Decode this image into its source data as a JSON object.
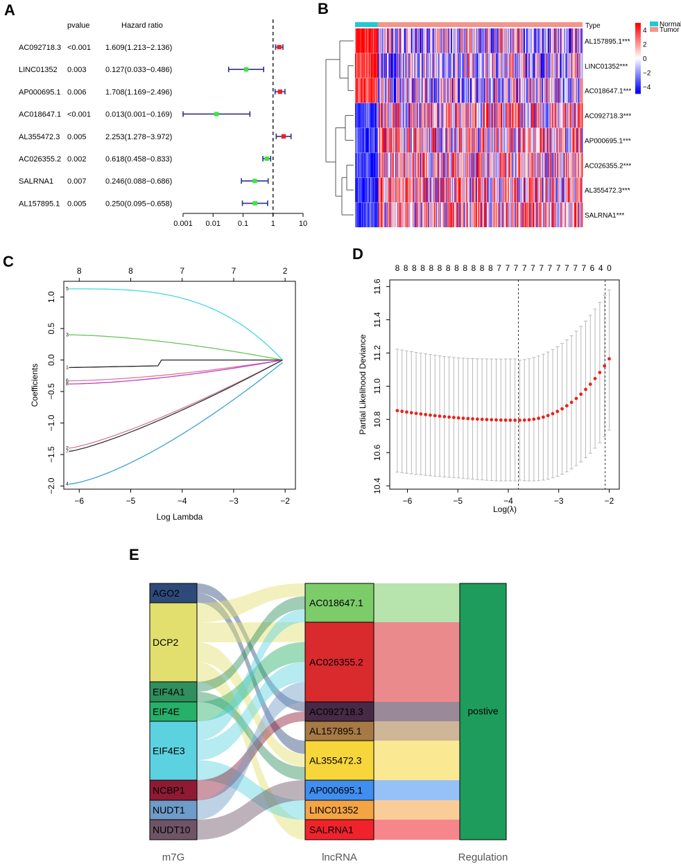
{
  "chart_data": [
    {
      "panel": "A",
      "type": "forest",
      "headers": {
        "pvalue": "pvalue",
        "hr": "Hazard ratio"
      },
      "rows": [
        {
          "gene": "AC092718.3",
          "pvalue": "<0.001",
          "hr_text": "1.609(1.213−2.136)",
          "hr": 1.609,
          "lo": 1.213,
          "hi": 2.136,
          "color": "#e8241f"
        },
        {
          "gene": "LINC01352",
          "pvalue": "0.003",
          "hr_text": "0.127(0.033−0.486)",
          "hr": 0.127,
          "lo": 0.033,
          "hi": 0.486,
          "color": "#3ee83a"
        },
        {
          "gene": "AP000695.1",
          "pvalue": "0.006",
          "hr_text": "1.708(1.169−2.496)",
          "hr": 1.708,
          "lo": 1.169,
          "hi": 2.496,
          "color": "#e8241f"
        },
        {
          "gene": "AC018647.1",
          "pvalue": "<0.001",
          "hr_text": "0.013(0.001−0.169)",
          "hr": 0.013,
          "lo": 0.001,
          "hi": 0.169,
          "color": "#3ee83a"
        },
        {
          "gene": "AL355472.3",
          "pvalue": "0.005",
          "hr_text": "2.253(1.278−3.972)",
          "hr": 2.253,
          "lo": 1.278,
          "hi": 3.972,
          "color": "#e8241f"
        },
        {
          "gene": "AC026355.2",
          "pvalue": "0.002",
          "hr_text": "0.618(0.458−0.833)",
          "hr": 0.618,
          "lo": 0.458,
          "hi": 0.833,
          "color": "#3ee83a"
        },
        {
          "gene": "SALRNA1",
          "pvalue": "0.007",
          "hr_text": "0.246(0.088−0.686)",
          "hr": 0.246,
          "lo": 0.088,
          "hi": 0.686,
          "color": "#3ee83a"
        },
        {
          "gene": "AL157895.1",
          "pvalue": "0.005",
          "hr_text": "0.250(0.095−0.658)",
          "hr": 0.25,
          "lo": 0.095,
          "hi": 0.658,
          "color": "#3ee83a"
        }
      ],
      "xticks": [
        0.001,
        0.01,
        0.1,
        1,
        10
      ],
      "xtick_labels": [
        "0.001",
        "0.01",
        "0.1",
        "1",
        "10"
      ],
      "reference_line": 1
    },
    {
      "panel": "B",
      "type": "heatmap",
      "row_labels": [
        "AL157895.1***",
        "LINC01352***",
        "AC018647.1***",
        "AC092718.3***",
        "AP000695.1***",
        "AC026355.2***",
        "AL355472.3***",
        "SALRNA1***"
      ],
      "row_direction": [
        1,
        1,
        1,
        -1,
        -1,
        -1,
        -1,
        -1
      ],
      "annotation_label": "Type",
      "groups": [
        {
          "name": "Normal",
          "color": "#22c8d4",
          "fraction": 0.1
        },
        {
          "name": "Tumor",
          "color": "#f3958c",
          "fraction": 0.9
        }
      ],
      "scale_ticks": [
        "4",
        "2",
        "0",
        "−2",
        "−4"
      ],
      "scale_range": [
        -5,
        5
      ]
    },
    {
      "panel": "C",
      "type": "line",
      "xlabel": "Log Lambda",
      "ylabel": "Coefficients",
      "xlim": [
        -6.3,
        -1.8
      ],
      "ylim": [
        -2.05,
        1.25
      ],
      "xticks": [
        -6,
        -5,
        -4,
        -3,
        -2
      ],
      "yticks": [
        -2.0,
        -1.5,
        -1.0,
        -0.5,
        0.0,
        0.5,
        1.0
      ],
      "top_axis": {
        "positions": [
          -6,
          -5,
          -4,
          -3,
          -2
        ],
        "labels": [
          "8",
          "8",
          "7",
          "7",
          "2"
        ]
      },
      "series": [
        {
          "name": "5",
          "color": "#40d8e0",
          "start": 1.13
        },
        {
          "name": "3",
          "color": "#6cc45c",
          "start": 0.4
        },
        {
          "name": "1",
          "color": "#222222",
          "start": -0.12
        },
        {
          "name": "6",
          "color": "#e07898",
          "start": -0.33
        },
        {
          "name": "8",
          "color": "#c040c8",
          "start": -0.38
        },
        {
          "name": "2",
          "color": "#d87890",
          "start": -1.4
        },
        {
          "name": "7",
          "color": "#333333",
          "start": -1.45
        },
        {
          "name": "4",
          "color": "#3aa0d8",
          "start": -1.97
        }
      ]
    },
    {
      "panel": "D",
      "type": "scatter",
      "xlabel": "Log(λ)",
      "ylabel": "Partial Likelihood Deviance",
      "xlim": [
        -6.35,
        -1.8
      ],
      "ylim": [
        10.38,
        11.64
      ],
      "xticks": [
        -6,
        -5,
        -4,
        -3,
        -2
      ],
      "yticks": [
        10.4,
        10.6,
        10.8,
        11.0,
        11.2,
        11.4,
        11.6
      ],
      "top_axis": {
        "labels": [
          "8",
          "8",
          "8",
          "8",
          "8",
          "8",
          "8",
          "8",
          "8",
          "8",
          "8",
          "8",
          "7",
          "7",
          "7",
          "7",
          "7",
          "7",
          "7",
          "7",
          "7",
          "7",
          "7",
          "6",
          "4",
          "0"
        ]
      },
      "vlines": [
        -3.8,
        -2.08
      ],
      "points": {
        "x_start": -6.2,
        "x_end": -2.0,
        "count": 46
      }
    },
    {
      "panel": "E",
      "type": "sankey",
      "axis_labels": [
        "m7G",
        "lncRNA",
        "Regulation"
      ],
      "m7g": [
        {
          "name": "AGO2",
          "color": "#2e4a7a"
        },
        {
          "name": "DCP2",
          "color": "#e3df6e"
        },
        {
          "name": "EIF4A1",
          "color": "#2f8f5e"
        },
        {
          "name": "EIF4E",
          "color": "#27b069"
        },
        {
          "name": "EIF4E3",
          "color": "#5cd2e0"
        },
        {
          "name": "NCBP1",
          "color": "#8f1a33"
        },
        {
          "name": "NUDT1",
          "color": "#6f9bc8"
        },
        {
          "name": "NUDT10",
          "color": "#6f5466"
        }
      ],
      "lncrna": [
        {
          "name": "AC018647.1",
          "color": "#7ccc6a"
        },
        {
          "name": "AC026355.2",
          "color": "#d92a2e"
        },
        {
          "name": "AC092718.3",
          "color": "#472a45"
        },
        {
          "name": "AL157895.1",
          "color": "#a77a45"
        },
        {
          "name": "AL355472.3",
          "color": "#f7d63b"
        },
        {
          "name": "AP000695.1",
          "color": "#3f8ef0"
        },
        {
          "name": "LINC01352",
          "color": "#f5a444"
        },
        {
          "name": "SALRNA1",
          "color": "#f0232d"
        }
      ],
      "regulation": [
        {
          "name": "postive",
          "color": "#1e9c5c"
        }
      ]
    }
  ],
  "panel_labels": {
    "a": "A",
    "b": "B",
    "c": "C",
    "d": "D",
    "e": "E"
  }
}
